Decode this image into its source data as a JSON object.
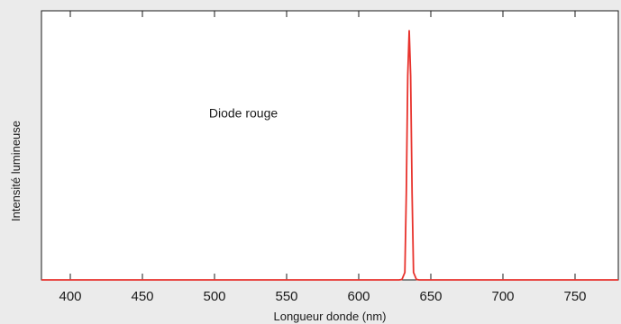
{
  "chart_data": {
    "type": "line",
    "title": "",
    "xlabel": "Longueur donde (nm)",
    "ylabel": "Intensité lumineuse",
    "xlim": [
      380,
      780
    ],
    "ylim": [
      0,
      1.08
    ],
    "x_ticks": [
      400,
      450,
      500,
      550,
      600,
      650,
      700,
      750
    ],
    "grid": false,
    "legend": "none",
    "annotations": [
      {
        "text": "Diode rouge",
        "x": 520,
        "y": 0.67
      }
    ],
    "series": [
      {
        "color": "#e8322c",
        "x": [
          380,
          600,
          628,
          630,
          632,
          633,
          634,
          635,
          636,
          637,
          638,
          640,
          642,
          660,
          780
        ],
        "y": [
          0,
          0,
          0,
          0.002,
          0.03,
          0.35,
          0.82,
          1.0,
          0.82,
          0.35,
          0.03,
          0.002,
          0,
          0,
          0
        ]
      }
    ]
  }
}
